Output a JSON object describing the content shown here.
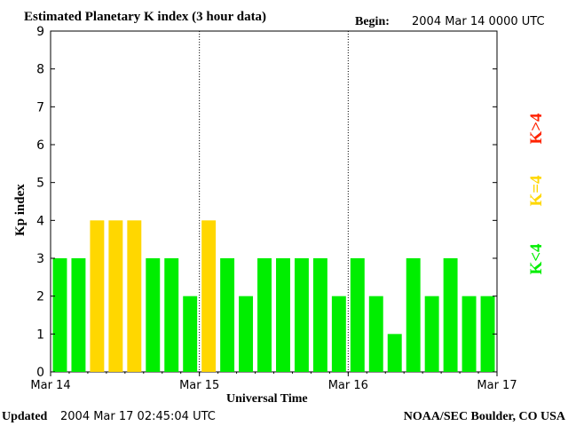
{
  "chart_data": {
    "type": "bar",
    "title": "Estimated Planetary K index (3 hour data)",
    "begin_label": "Begin:",
    "begin_value": "2004 Mar 14 0000 UTC",
    "xlabel": "Universal Time",
    "ylabel": "Kp index",
    "ylim": [
      0,
      9
    ],
    "yticks": [
      "0",
      "1",
      "2",
      "3",
      "4",
      "5",
      "6",
      "7",
      "8",
      "9"
    ],
    "xticks": [
      "Mar 14",
      "Mar 15",
      "Mar 16",
      "Mar 17"
    ],
    "values": [
      3,
      3,
      4,
      4,
      4,
      3,
      3,
      2,
      4,
      3,
      2,
      3,
      3,
      3,
      3,
      2,
      3,
      2,
      1,
      3,
      2,
      3,
      2,
      2
    ],
    "grid": false,
    "day_separators": "dotted vertical lines at day boundaries",
    "legend": {
      "placement": "right",
      "entries": [
        {
          "label": "K<4",
          "color": "#00ee00"
        },
        {
          "label": "K=4",
          "color": "#ffd700"
        },
        {
          "label": "K>4",
          "color": "#ff2200"
        }
      ]
    }
  },
  "footer": {
    "updated_label": "Updated",
    "updated_value": "2004 Mar 17 02:45:04 UTC",
    "source": "NOAA/SEC Boulder, CO USA"
  }
}
